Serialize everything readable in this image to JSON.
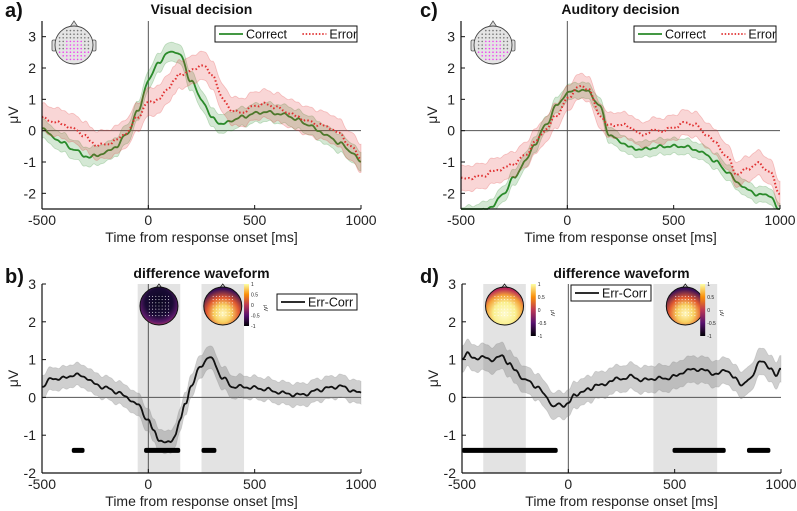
{
  "chart_data": [
    {
      "id": "a",
      "panel_label": "a)",
      "type": "line",
      "title": "Visual decision",
      "xlabel": "Time from response onset [ms]",
      "ylabel": "μV",
      "xlim": [
        -500,
        1000
      ],
      "ylim": [
        -2.5,
        3.5
      ],
      "xticks": [
        -500,
        0,
        500,
        1000
      ],
      "yticks": [
        -2,
        -1,
        0,
        1,
        2,
        3
      ],
      "zero_lines": true,
      "head_inset": true,
      "legend": {
        "placement": "top-right",
        "entries": [
          "Correct",
          "Error"
        ]
      },
      "x": [
        -500,
        -450,
        -400,
        -350,
        -300,
        -270,
        -250,
        -200,
        -150,
        -100,
        -50,
        0,
        50,
        100,
        120,
        150,
        200,
        250,
        300,
        350,
        400,
        450,
        500,
        550,
        600,
        650,
        700,
        750,
        800,
        850,
        900,
        950,
        1000
      ],
      "series": [
        {
          "name": "Correct",
          "color": "#2a8a2a",
          "style": "solid",
          "ci": 0.3,
          "values": [
            0.1,
            -0.2,
            -0.4,
            -0.6,
            -0.8,
            -0.85,
            -0.8,
            -0.7,
            -0.5,
            -0.1,
            0.6,
            1.6,
            2.2,
            2.5,
            2.55,
            2.4,
            1.6,
            1.0,
            0.4,
            0.2,
            0.35,
            0.45,
            0.55,
            0.6,
            0.55,
            0.5,
            0.35,
            0.2,
            0.0,
            -0.2,
            -0.4,
            -0.65,
            -1.0
          ]
        },
        {
          "name": "Error",
          "color": "#e03030",
          "style": "dotted",
          "ci": 0.45,
          "values": [
            0.4,
            0.3,
            0.2,
            0.05,
            -0.15,
            -0.35,
            -0.45,
            -0.45,
            -0.3,
            -0.05,
            0.45,
            0.9,
            1.0,
            1.4,
            1.6,
            1.8,
            1.9,
            2.1,
            1.8,
            1.0,
            0.6,
            0.6,
            0.8,
            0.85,
            0.75,
            0.6,
            0.45,
            0.3,
            0.2,
            0.1,
            -0.1,
            -0.5,
            -0.85
          ]
        }
      ]
    },
    {
      "id": "c",
      "panel_label": "c)",
      "type": "line",
      "title": "Auditory decision",
      "xlabel": "Time from response onset [ms]",
      "ylabel": "μV",
      "xlim": [
        -500,
        1000
      ],
      "ylim": [
        -2.5,
        3.5
      ],
      "xticks": [
        -500,
        0,
        500,
        1000
      ],
      "yticks": [
        -2,
        -1,
        0,
        1,
        2,
        3
      ],
      "zero_lines": true,
      "head_inset": true,
      "legend": {
        "placement": "top-right",
        "entries": [
          "Correct",
          "Error"
        ]
      },
      "x": [
        -500,
        -450,
        -400,
        -350,
        -300,
        -250,
        -200,
        -150,
        -100,
        -50,
        0,
        50,
        100,
        150,
        200,
        250,
        300,
        350,
        400,
        450,
        500,
        550,
        600,
        650,
        700,
        750,
        800,
        850,
        900,
        950,
        1000
      ],
      "series": [
        {
          "name": "Correct",
          "color": "#2a8a2a",
          "style": "solid",
          "ci": 0.25,
          "values": [
            -2.7,
            -2.65,
            -2.55,
            -2.4,
            -2.0,
            -1.5,
            -1.0,
            -0.4,
            0.2,
            0.8,
            1.2,
            1.3,
            1.25,
            0.8,
            -0.15,
            -0.35,
            -0.55,
            -0.6,
            -0.55,
            -0.5,
            -0.5,
            -0.5,
            -0.6,
            -0.75,
            -1.0,
            -1.3,
            -1.65,
            -1.9,
            -2.05,
            -2.05,
            -2.6
          ]
        },
        {
          "name": "Error",
          "color": "#e03030",
          "style": "dotted",
          "ci": 0.4,
          "values": [
            -1.55,
            -1.5,
            -1.45,
            -1.3,
            -1.2,
            -1.05,
            -0.8,
            -0.35,
            0.05,
            0.5,
            1.0,
            1.4,
            1.35,
            0.5,
            0.15,
            0.2,
            0.1,
            -0.15,
            0.0,
            0.0,
            0.1,
            0.25,
            0.2,
            -0.1,
            -0.4,
            -0.85,
            -1.4,
            -1.2,
            -1.05,
            -1.3,
            -2.0
          ]
        }
      ]
    },
    {
      "id": "b",
      "panel_label": "b)",
      "type": "line",
      "title": "difference waveform",
      "xlabel": "Time from response onset [ms]",
      "ylabel": "μV",
      "xlim": [
        -500,
        1000
      ],
      "ylim": [
        -2,
        3
      ],
      "xticks": [
        -500,
        0,
        500,
        1000
      ],
      "yticks": [
        -2,
        -1,
        0,
        1,
        2,
        3
      ],
      "zero_lines": true,
      "legend": {
        "placement": "top-right",
        "entries": [
          "Err-Corr"
        ]
      },
      "shaded_windows_ms": [
        [
          -50,
          150
        ],
        [
          250,
          450
        ]
      ],
      "significance_bars_ms": [
        [
          -360,
          -300
        ],
        [
          -20,
          150
        ],
        [
          250,
          320
        ]
      ],
      "significance_bar_y": -1.4,
      "topomaps": [
        {
          "window_ms": [
            -50,
            150
          ],
          "pattern": "negative"
        },
        {
          "window_ms": [
            250,
            450
          ],
          "pattern": "posterior-positive"
        }
      ],
      "colorbar": {
        "ticks": [
          1,
          0.5,
          0,
          -0.5,
          -1
        ],
        "label": "μV"
      },
      "x": [
        -500,
        -450,
        -400,
        -350,
        -300,
        -250,
        -200,
        -150,
        -100,
        -50,
        0,
        25,
        50,
        75,
        100,
        125,
        150,
        175,
        200,
        250,
        280,
        300,
        350,
        400,
        450,
        500,
        550,
        600,
        650,
        700,
        750,
        800,
        850,
        900,
        950,
        1000
      ],
      "series": [
        {
          "name": "Err-Corr",
          "color": "#111111",
          "style": "solid",
          "ci": 0.3,
          "values": [
            0.3,
            0.5,
            0.5,
            0.6,
            0.55,
            0.35,
            0.25,
            0.15,
            0.0,
            -0.2,
            -0.6,
            -0.9,
            -1.1,
            -1.2,
            -1.2,
            -1.0,
            -0.6,
            -0.15,
            0.3,
            0.85,
            1.05,
            1.0,
            0.5,
            0.28,
            0.28,
            0.25,
            0.22,
            0.15,
            0.1,
            0.06,
            0.1,
            0.2,
            0.25,
            0.3,
            0.2,
            0.1
          ]
        }
      ]
    },
    {
      "id": "d",
      "panel_label": "d)",
      "type": "line",
      "title": "difference waveform",
      "xlabel": "Time from response onset [ms]",
      "ylabel": "μV",
      "xlim": [
        -500,
        1000
      ],
      "ylim": [
        -2,
        3
      ],
      "xticks": [
        -500,
        0,
        500,
        1000
      ],
      "yticks": [
        -2,
        -1,
        0,
        1,
        2,
        3
      ],
      "zero_lines": true,
      "legend": {
        "placement": "top-center",
        "entries": [
          "Err-Corr"
        ]
      },
      "shaded_windows_ms": [
        [
          -400,
          -200
        ],
        [
          400,
          700
        ]
      ],
      "significance_bars_ms": [
        [
          -500,
          -50
        ],
        [
          490,
          740
        ],
        [
          840,
          950
        ]
      ],
      "significance_bar_y": -1.4,
      "topomaps": [
        {
          "window_ms": [
            -400,
            -200
          ],
          "pattern": "positive"
        },
        {
          "window_ms": [
            400,
            700
          ],
          "pattern": "posterior-positive"
        }
      ],
      "colorbar": {
        "ticks": [
          1,
          0.5,
          0,
          -0.5,
          -1
        ],
        "label": "μV"
      },
      "x": [
        -500,
        -475,
        -450,
        -400,
        -350,
        -310,
        -280,
        -250,
        -200,
        -150,
        -100,
        -70,
        -50,
        -20,
        0,
        30,
        60,
        100,
        130,
        160,
        200,
        250,
        300,
        350,
        400,
        450,
        500,
        550,
        600,
        650,
        700,
        740,
        780,
        820,
        850,
        900,
        950,
        980,
        1000
      ],
      "series": [
        {
          "name": "Err-Corr",
          "color": "#111111",
          "style": "solid",
          "ci": 0.35,
          "values": [
            1.05,
            1.15,
            1.05,
            1.05,
            1.0,
            1.1,
            0.9,
            0.7,
            0.45,
            0.3,
            0.0,
            -0.25,
            -0.2,
            -0.2,
            -0.15,
            0.05,
            0.15,
            0.2,
            0.35,
            0.3,
            0.45,
            0.5,
            0.55,
            0.45,
            0.5,
            0.5,
            0.55,
            0.7,
            0.75,
            0.7,
            0.6,
            0.75,
            0.5,
            0.35,
            0.45,
            0.95,
            0.8,
            0.55,
            0.75
          ]
        }
      ]
    }
  ],
  "layout_text": {
    "colorbar_tick_labels": [
      "1",
      "0.5",
      "0",
      "-0.5",
      "-1"
    ]
  }
}
